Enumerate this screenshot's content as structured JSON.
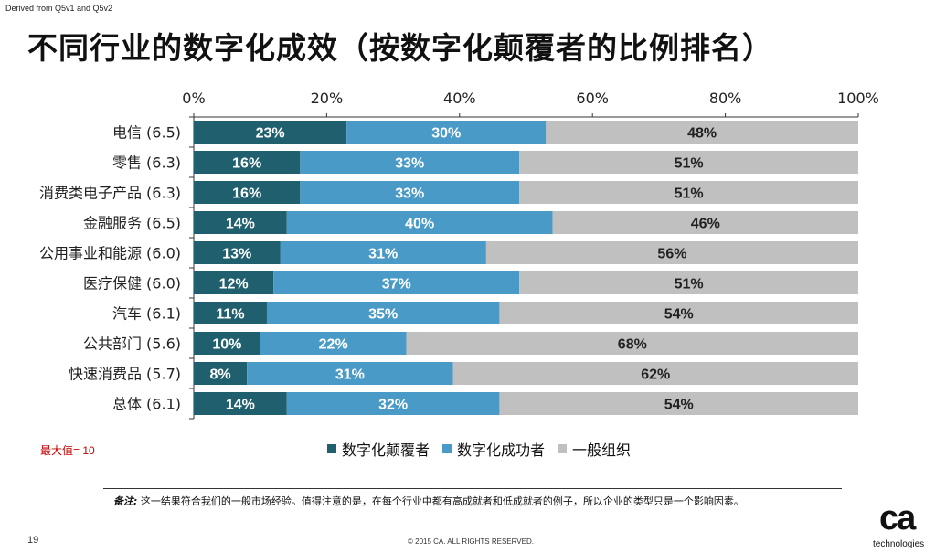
{
  "source_note": "Derived from Q5v1 and Q5v2",
  "title": "不同行业的数字化成效（按数字化颠覆者的比例排名）",
  "max_value_note": "最大值= 10",
  "footnote": {
    "label": "备注:",
    "text": "这一结果符合我们的一般市场经验。值得注意的是，在每个行业中都有高成就者和低成就者的例子，所以企业的类型只是一个影响因素。"
  },
  "page_number": "19",
  "copyright": "© 2015 CA. ALL RIGHTS RESERVED.",
  "logo": {
    "text": "ca",
    "tagline": "technologies"
  },
  "chart_data": {
    "type": "bar",
    "orientation": "horizontal",
    "stacked": true,
    "xlim": [
      0,
      100
    ],
    "x_ticks": [
      "0%",
      "20%",
      "40%",
      "60%",
      "80%",
      "100%"
    ],
    "categories": [
      "电信 (6.5)",
      "零售 (6.3)",
      "消费类电子产品 (6.3)",
      "金融服务 (6.5)",
      "公用事业和能源 (6.0)",
      "医疗保健 (6.0)",
      "汽车 (6.1)",
      "公共部门 (5.6)",
      "快速消费品 (5.7)",
      "总体 (6.1)"
    ],
    "series": [
      {
        "name": "数字化颠覆者",
        "color": "#1f5f6e",
        "label_color": "#ffffff",
        "values": [
          23,
          16,
          16,
          14,
          13,
          12,
          11,
          10,
          8,
          14
        ]
      },
      {
        "name": "数字化成功者",
        "color": "#4a9ac8",
        "label_color": "#ffffff",
        "values": [
          30,
          33,
          33,
          40,
          31,
          37,
          35,
          22,
          31,
          32
        ]
      },
      {
        "name": "一般组织",
        "color": "#c0c0c0",
        "label_color": "#222222",
        "values": [
          48,
          51,
          51,
          46,
          56,
          51,
          54,
          68,
          62,
          54
        ]
      }
    ],
    "value_suffix": "%",
    "legend_position": "bottom"
  }
}
